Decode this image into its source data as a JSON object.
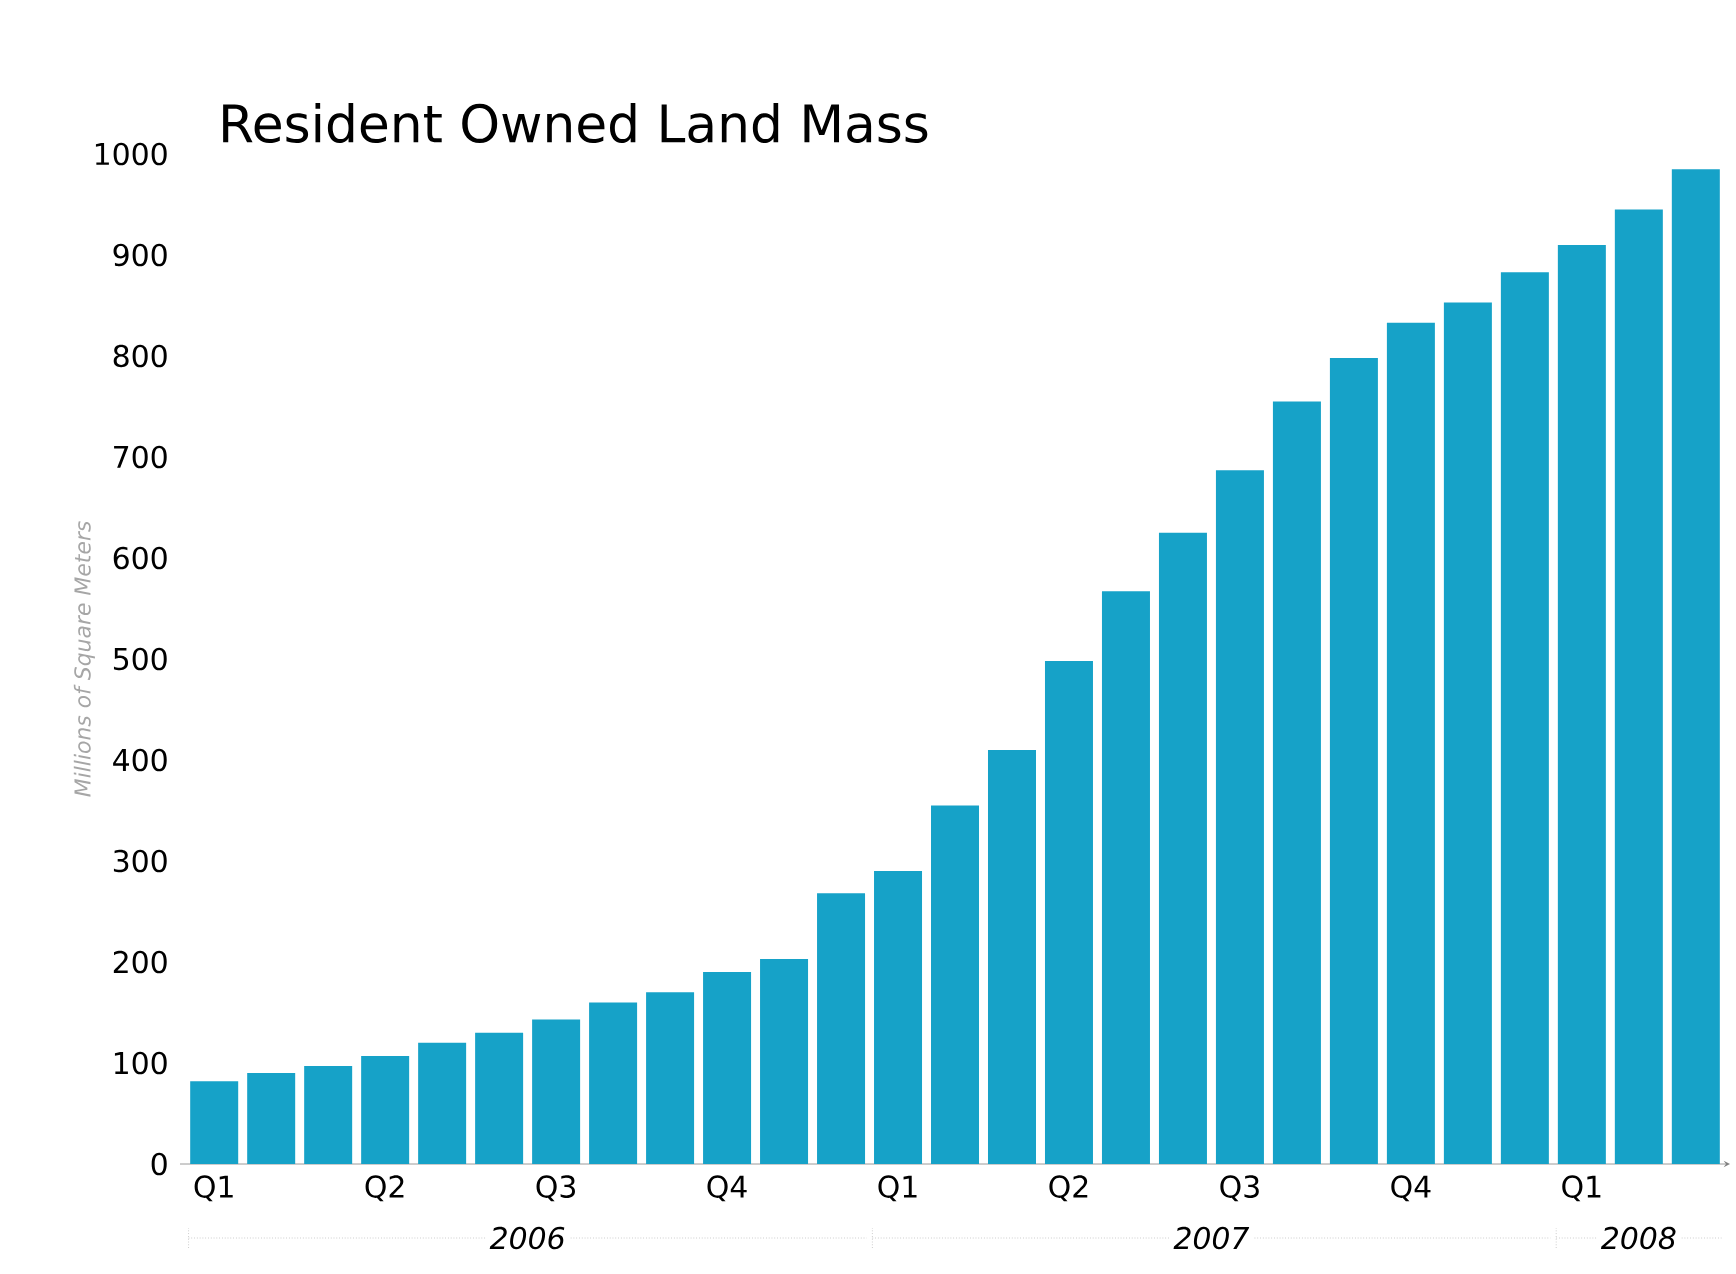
{
  "chart_data": {
    "type": "bar",
    "title": "Resident Owned Land Mass",
    "ylabel": "Millions of Square Meters",
    "categories": [
      "Q1",
      null,
      null,
      "Q2",
      null,
      null,
      "Q3",
      null,
      null,
      "Q4",
      null,
      null,
      "Q1",
      null,
      null,
      "Q2",
      null,
      null,
      "Q3",
      null,
      null,
      "Q4",
      null,
      null,
      "Q1",
      null,
      null
    ],
    "values": [
      82,
      90,
      97,
      107,
      120,
      130,
      143,
      160,
      170,
      190,
      203,
      268,
      290,
      355,
      410,
      498,
      567,
      625,
      687,
      755,
      798,
      833,
      853,
      883,
      910,
      945,
      985
    ],
    "color": "#16a2c8",
    "ylim": [
      0,
      1000
    ],
    "yticks": [
      0,
      100,
      200,
      300,
      400,
      500,
      600,
      700,
      800,
      900,
      1000
    ],
    "grid": false,
    "annotations": [
      "2006",
      "2007",
      "2008"
    ]
  }
}
